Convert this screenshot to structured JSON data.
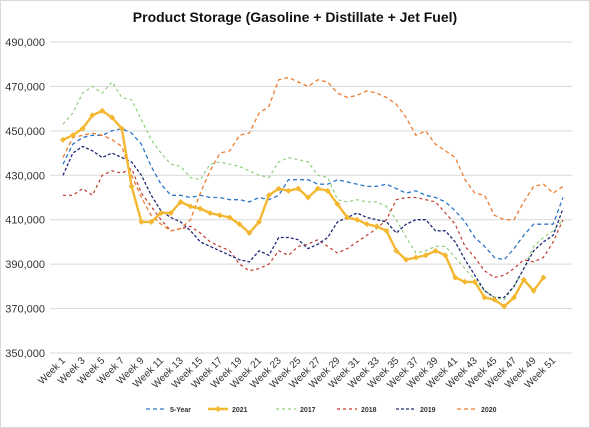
{
  "chart_data": {
    "type": "line",
    "title": "Product Storage (Gasoline + Distillate + Jet Fuel)",
    "xlabel": "",
    "ylabel": "",
    "ylim": [
      350000,
      490000
    ],
    "y_ticks": [
      "350,000",
      "370,000",
      "390,000",
      "410,000",
      "430,000",
      "450,000",
      "470,000",
      "490,000"
    ],
    "x_tick_labels": [
      "Week 1",
      "Week 3",
      "Week 5",
      "Week 7",
      "Week 9",
      "Week 11",
      "Week 13",
      "Week 15",
      "Week 17",
      "Week 19",
      "Week 21",
      "Week 23",
      "Week 25",
      "Week 27",
      "Week 29",
      "Week 31",
      "Week 33",
      "Week 35",
      "Week 37",
      "Week 39",
      "Week 41",
      "Week 43",
      "Week 45",
      "Week 47",
      "Week 49",
      "Week 51"
    ],
    "grid": true,
    "legend_position": "bottom",
    "series": [
      {
        "name": "5-Year",
        "color": "#2e75c6",
        "dash": "4,3",
        "width": 1.3,
        "markers": false,
        "values": [
          435000,
          444000,
          447000,
          448000,
          448000,
          450000,
          451000,
          449000,
          444000,
          434000,
          426000,
          421000,
          421000,
          420000,
          421000,
          420000,
          420000,
          419000,
          419000,
          418000,
          420000,
          419000,
          421000,
          428000,
          428000,
          428000,
          426000,
          426000,
          428000,
          427000,
          426000,
          425000,
          425000,
          426000,
          424000,
          422000,
          423000,
          421000,
          420000,
          418000,
          414000,
          409000,
          402000,
          398000,
          393000,
          392000,
          397000,
          403000,
          408000,
          408000,
          408000,
          420000
        ]
      },
      {
        "name": "2021",
        "color": "#f4b731",
        "dash": "",
        "width": 2.4,
        "markers": true,
        "values": [
          446000,
          448000,
          451000,
          457000,
          459000,
          456000,
          451000,
          425000,
          409000,
          409000,
          413000,
          413000,
          418000,
          416000,
          415000,
          413000,
          412000,
          411000,
          408000,
          404000,
          409000,
          421000,
          424000,
          423000,
          424000,
          420000,
          424000,
          423000,
          417000,
          411000,
          410000,
          408000,
          407000,
          405000,
          396000,
          392000,
          393000,
          394000,
          396000,
          394000,
          384000,
          382000,
          382000,
          375000,
          374000,
          371000,
          375000,
          383000,
          378000,
          384000
        ]
      },
      {
        "name": "2017",
        "color": "#8fce7c",
        "dash": "3,3",
        "width": 1.2,
        "markers": false,
        "values": [
          453000,
          458000,
          467000,
          470000,
          467000,
          472000,
          465000,
          464000,
          455000,
          446000,
          440000,
          435000,
          434000,
          429000,
          428000,
          435000,
          436000,
          435000,
          434000,
          432000,
          430000,
          429000,
          436000,
          438000,
          437000,
          436000,
          430000,
          429000,
          419000,
          418000,
          419000,
          418000,
          418000,
          416000,
          410000,
          402000,
          395000,
          396000,
          398000,
          398000,
          393000,
          388000,
          383000,
          378000,
          375000,
          374000,
          380000,
          388000,
          398000,
          402000,
          405000,
          410000
        ]
      },
      {
        "name": "2018",
        "color": "#c0392b",
        "dash": "3,3",
        "width": 1.2,
        "markers": false,
        "values": [
          421000,
          421000,
          424000,
          421000,
          430000,
          432000,
          431000,
          433000,
          422000,
          416000,
          410000,
          405000,
          406000,
          407000,
          404000,
          400000,
          398000,
          396000,
          390000,
          387000,
          388000,
          390000,
          396000,
          394000,
          398000,
          399000,
          401000,
          398000,
          395000,
          397000,
          400000,
          403000,
          406000,
          410000,
          419000,
          420000,
          420000,
          419000,
          418000,
          413000,
          408000,
          398000,
          393000,
          387000,
          384000,
          385000,
          388000,
          392000,
          391000,
          393000,
          400000,
          410000
        ]
      },
      {
        "name": "2019",
        "color": "#1f2a78",
        "dash": "3,2",
        "width": 1.3,
        "markers": false,
        "values": [
          430000,
          440000,
          443000,
          441000,
          438000,
          440000,
          438000,
          436000,
          430000,
          421000,
          414000,
          411000,
          409000,
          405000,
          400000,
          398000,
          396000,
          394000,
          392000,
          391000,
          396000,
          394000,
          402000,
          402000,
          401000,
          397000,
          399000,
          402000,
          409000,
          411000,
          413000,
          411000,
          410000,
          409000,
          404000,
          408000,
          410000,
          410000,
          405000,
          405000,
          400000,
          392000,
          385000,
          378000,
          375000,
          375000,
          380000,
          388000,
          396000,
          400000,
          403000,
          415000
        ]
      },
      {
        "name": "2020",
        "color": "#ed7d31",
        "dash": "4,3",
        "width": 1.3,
        "markers": false,
        "values": [
          438000,
          447000,
          448000,
          449000,
          448000,
          446000,
          443000,
          430000,
          420000,
          412000,
          408000,
          405000,
          406000,
          410000,
          422000,
          432000,
          440000,
          441000,
          448000,
          449000,
          458000,
          461000,
          473000,
          474000,
          472000,
          470000,
          473000,
          472000,
          467000,
          465000,
          466000,
          468000,
          467000,
          465000,
          462000,
          456000,
          448000,
          450000,
          444000,
          441000,
          438000,
          428000,
          422000,
          421000,
          412000,
          410000,
          410000,
          418000,
          425000,
          426000,
          422000,
          425000
        ]
      }
    ]
  }
}
